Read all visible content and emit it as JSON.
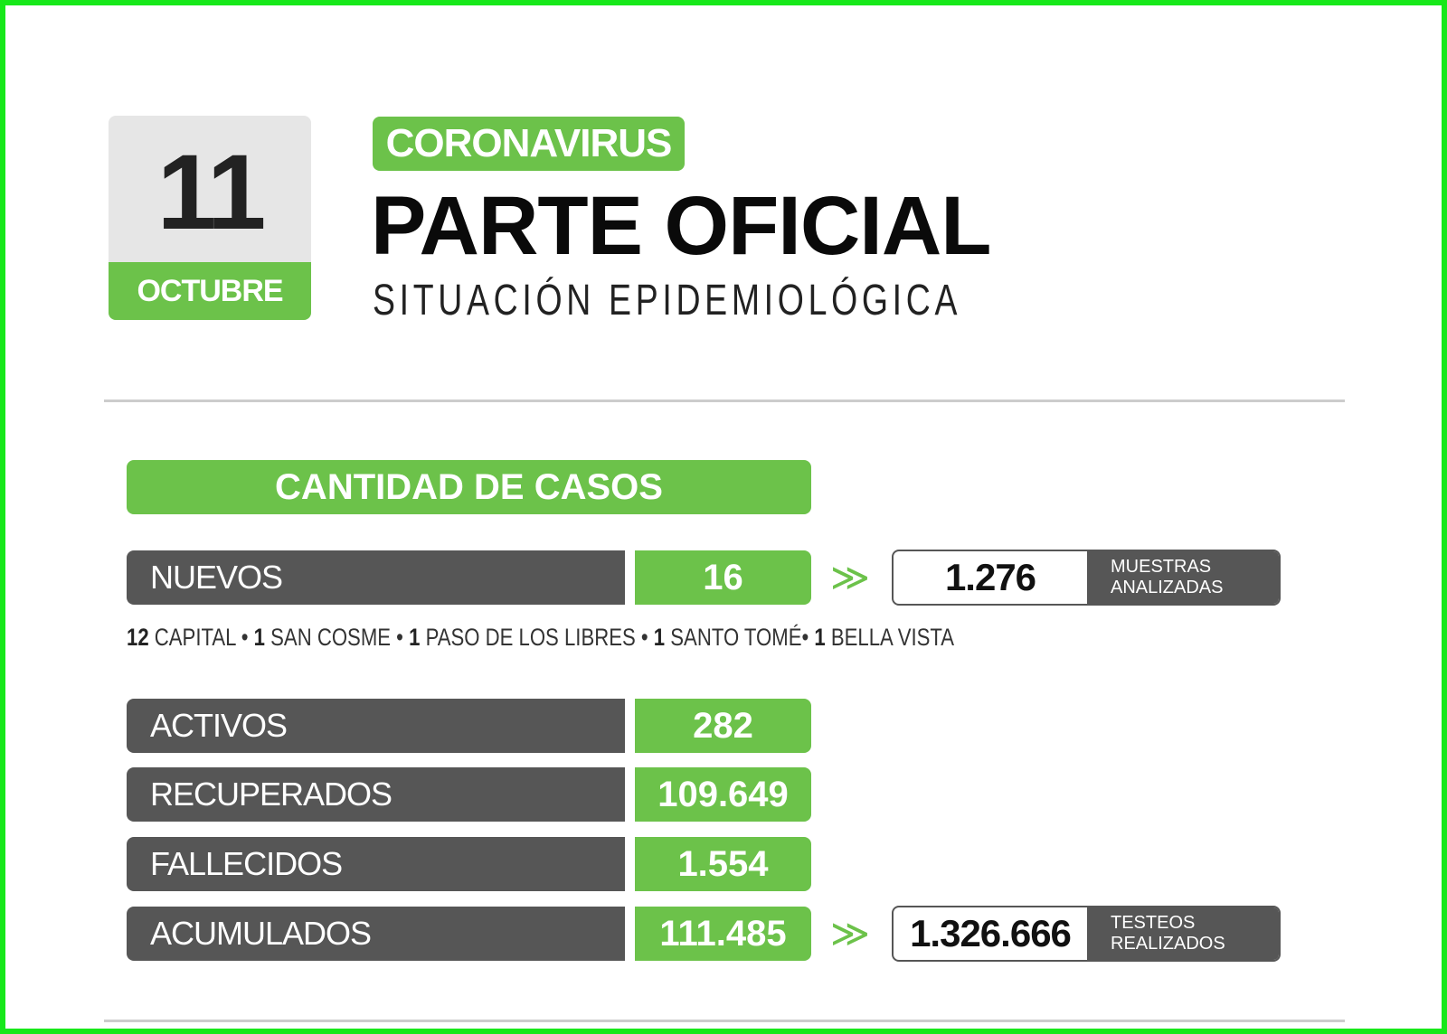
{
  "date": {
    "day": "11",
    "month": "OCTUBRE"
  },
  "header": {
    "tag": "CORONAVIRUS",
    "title": "PARTE OFICIAL",
    "subtitle": "SITUACIÓN EPIDEMIOLÓGICA"
  },
  "section": {
    "title": "CANTIDAD DE CASOS"
  },
  "rows": [
    {
      "label": "NUEVOS",
      "value": "16"
    },
    {
      "label": "ACTIVOS",
      "value": "282"
    },
    {
      "label": "RECUPERADOS",
      "value": "109.649"
    },
    {
      "label": "FALLECIDOS",
      "value": "1.554"
    },
    {
      "label": "ACUMULADOS",
      "value": "111.485"
    }
  ],
  "breakdown": [
    {
      "count": "12",
      "place": "CAPITAL"
    },
    {
      "count": "1",
      "place": "SAN COSME"
    },
    {
      "count": "1",
      "place": "PASO DE LOS LIBRES"
    },
    {
      "count": "1",
      "place": "SANTO TOMÉ"
    },
    {
      "count": "1",
      "place": "BELLA VISTA"
    }
  ],
  "muestras": {
    "value": "1.276",
    "label_line1": "MUESTRAS",
    "label_line2": "ANALIZADAS"
  },
  "testeos": {
    "value": "1.326.666",
    "label_line1": "TESTEOS",
    "label_line2": "REALIZADOS"
  },
  "arrow_symbol": "≫",
  "colors": {
    "green": "#6cc24a",
    "dark_gray": "#565656",
    "frame": "#17e81a"
  }
}
